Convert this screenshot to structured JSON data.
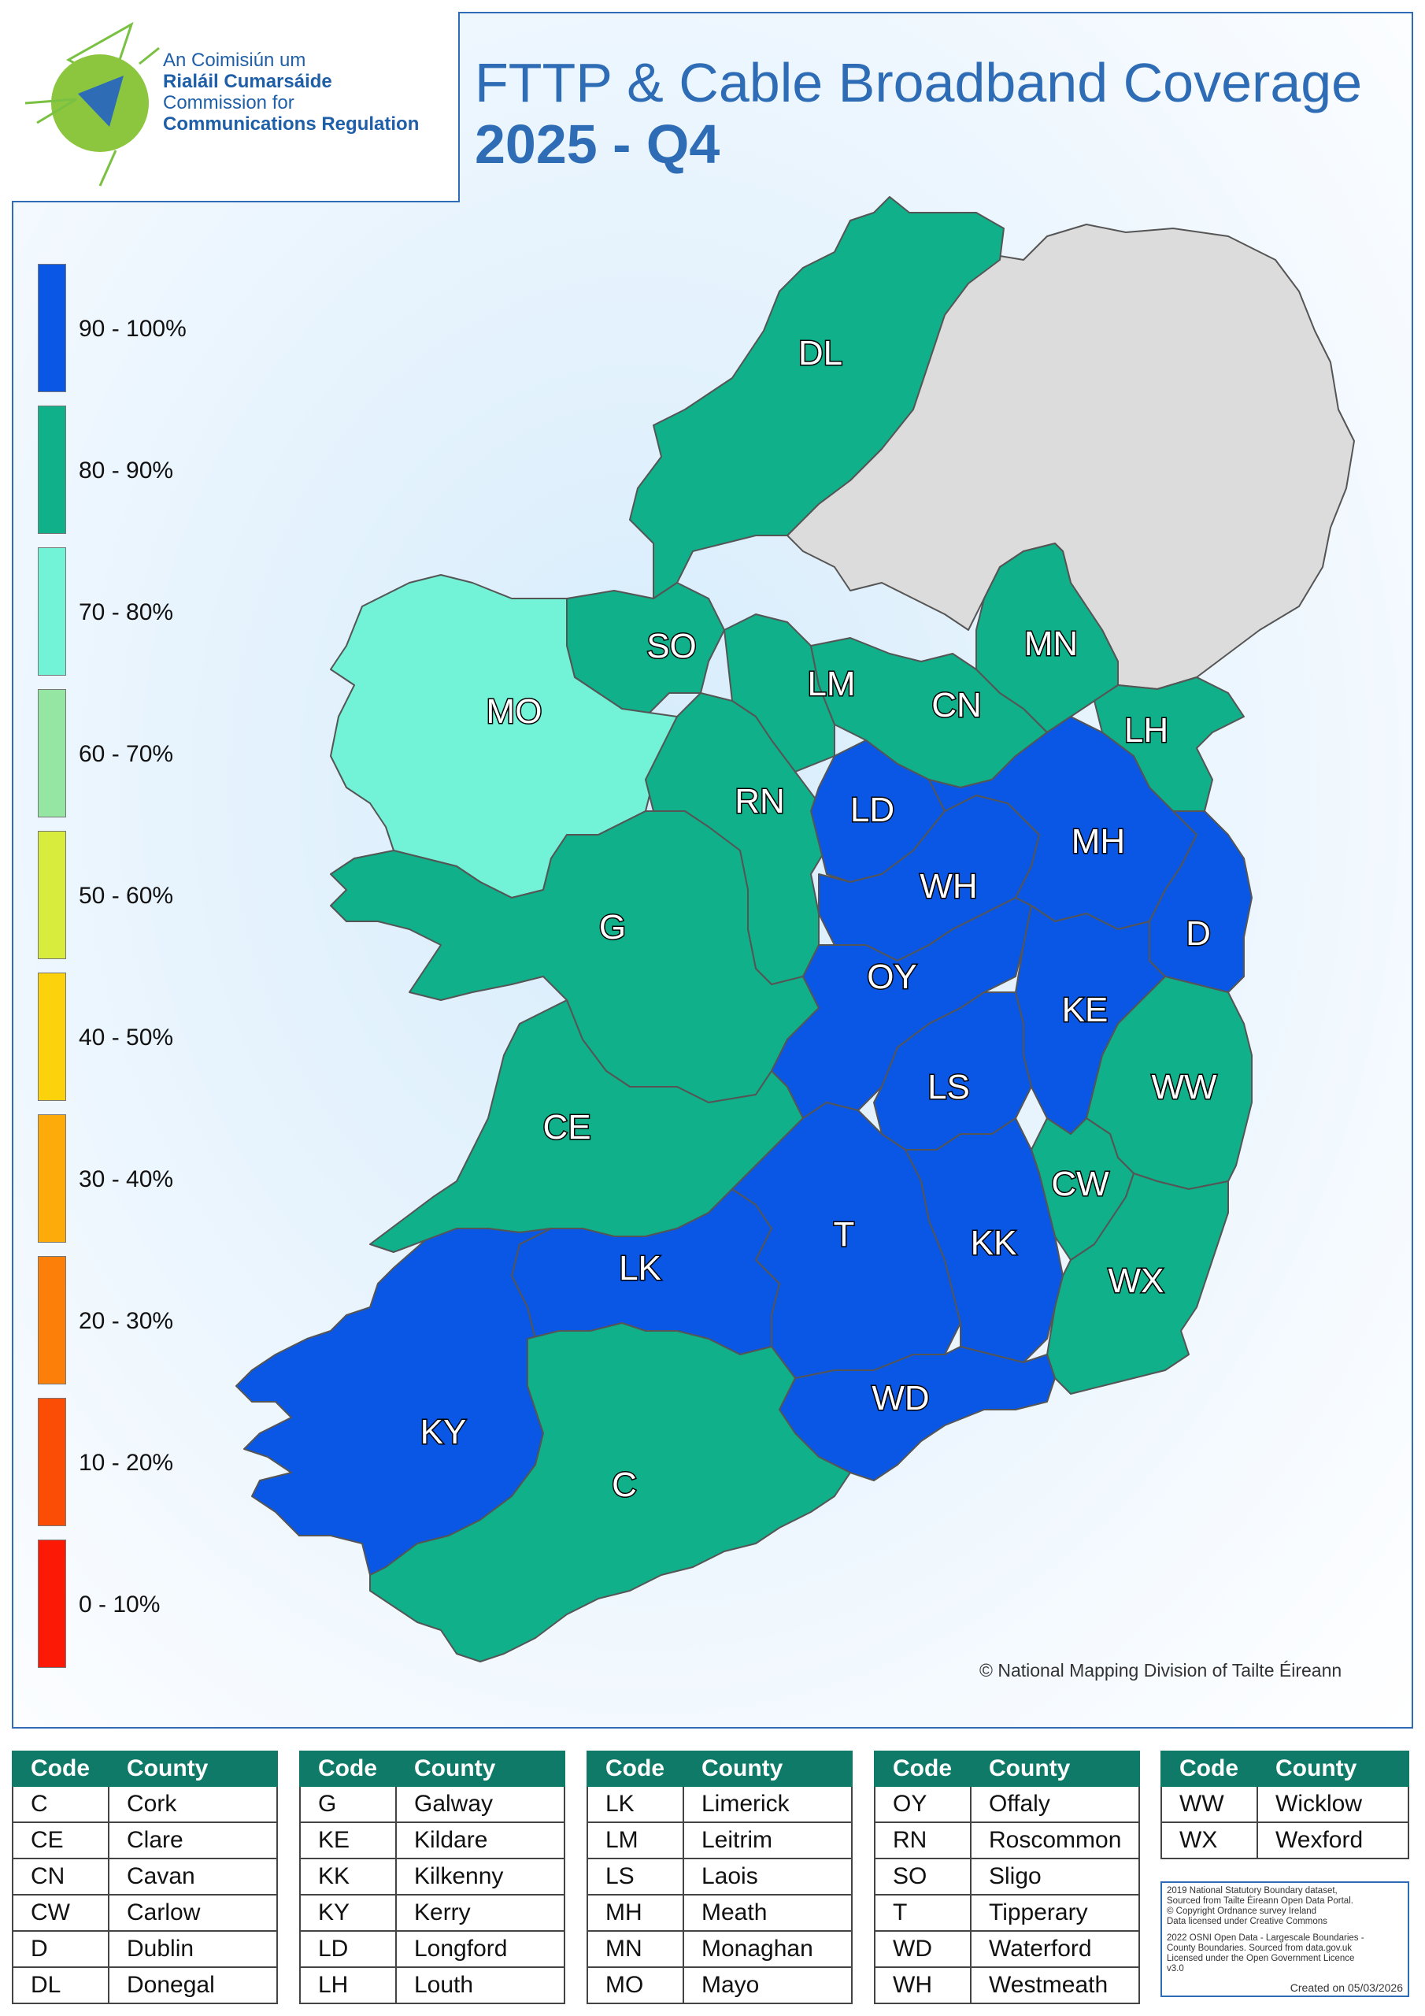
{
  "logo": {
    "line1": "An Coimisiún um",
    "line2": "Rialáil Cumarsáide",
    "line3": "Commission for",
    "line4": "Communications Regulation"
  },
  "title": {
    "line1": "FTTP & Cable Broadband Coverage",
    "line2": "2025 - Q4"
  },
  "legend": [
    {
      "label": "90 - 100%",
      "color": "#0a57e6"
    },
    {
      "label": "80 - 90%",
      "color": "#0fb08a"
    },
    {
      "label": "70 - 80%",
      "color": "#72f2d6"
    },
    {
      "label": "60 - 70%",
      "color": "#94e6a2"
    },
    {
      "label": "50 - 60%",
      "color": "#d8ec3e"
    },
    {
      "label": "40 - 50%",
      "color": "#fbd20c"
    },
    {
      "label": "30 - 40%",
      "color": "#fcab0a"
    },
    {
      "label": "20 - 30%",
      "color": "#fb7f08"
    },
    {
      "label": "10 - 20%",
      "color": "#fc4d07"
    },
    {
      "label": "0 - 10%",
      "color": "#fc1a06"
    }
  ],
  "map": {
    "counties": [
      {
        "code": "DL",
        "band": "80 - 90%"
      },
      {
        "code": "SO",
        "band": "80 - 90%"
      },
      {
        "code": "MO",
        "band": "70 - 80%"
      },
      {
        "code": "LM",
        "band": "80 - 90%"
      },
      {
        "code": "CN",
        "band": "80 - 90%"
      },
      {
        "code": "MN",
        "band": "80 - 90%"
      },
      {
        "code": "LH",
        "band": "80 - 90%"
      },
      {
        "code": "RN",
        "band": "80 - 90%"
      },
      {
        "code": "LD",
        "band": "90 - 100%"
      },
      {
        "code": "MH",
        "band": "90 - 100%"
      },
      {
        "code": "WH",
        "band": "90 - 100%"
      },
      {
        "code": "G",
        "band": "80 - 90%"
      },
      {
        "code": "D",
        "band": "90 - 100%"
      },
      {
        "code": "OY",
        "band": "90 - 100%"
      },
      {
        "code": "KE",
        "band": "90 - 100%"
      },
      {
        "code": "LS",
        "band": "90 - 100%"
      },
      {
        "code": "WW",
        "band": "80 - 90%"
      },
      {
        "code": "CE",
        "band": "80 - 90%"
      },
      {
        "code": "CW",
        "band": "80 - 90%"
      },
      {
        "code": "T",
        "band": "90 - 100%"
      },
      {
        "code": "KK",
        "band": "90 - 100%"
      },
      {
        "code": "LK",
        "band": "90 - 100%"
      },
      {
        "code": "WX",
        "band": "80 - 90%"
      },
      {
        "code": "WD",
        "band": "90 - 100%"
      },
      {
        "code": "KY",
        "band": "90 - 100%"
      },
      {
        "code": "C",
        "band": "80 - 90%"
      }
    ],
    "credit": "© National Mapping Division of Tailte Éireann"
  },
  "tables": [
    {
      "header": [
        "Code",
        "County"
      ],
      "rows": [
        [
          "C",
          "Cork"
        ],
        [
          "CE",
          "Clare"
        ],
        [
          "CN",
          "Cavan"
        ],
        [
          "CW",
          "Carlow"
        ],
        [
          "D",
          "Dublin"
        ],
        [
          "DL",
          "Donegal"
        ]
      ]
    },
    {
      "header": [
        "Code",
        "County"
      ],
      "rows": [
        [
          "G",
          "Galway"
        ],
        [
          "KE",
          "Kildare"
        ],
        [
          "KK",
          "Kilkenny"
        ],
        [
          "KY",
          "Kerry"
        ],
        [
          "LD",
          "Longford"
        ],
        [
          "LH",
          "Louth"
        ]
      ]
    },
    {
      "header": [
        "Code",
        "County"
      ],
      "rows": [
        [
          "LK",
          "Limerick"
        ],
        [
          "LM",
          "Leitrim"
        ],
        [
          "LS",
          "Laois"
        ],
        [
          "MH",
          "Meath"
        ],
        [
          "MN",
          "Monaghan"
        ],
        [
          "MO",
          "Mayo"
        ]
      ]
    },
    {
      "header": [
        "Code",
        "County"
      ],
      "rows": [
        [
          "OY",
          "Offaly"
        ],
        [
          "RN",
          "Roscommon"
        ],
        [
          "SO",
          "Sligo"
        ],
        [
          "T",
          "Tipperary"
        ],
        [
          "WD",
          "Waterford"
        ],
        [
          "WH",
          "Westmeath"
        ]
      ]
    },
    {
      "header": [
        "Code",
        "County"
      ],
      "rows": [
        [
          "WW",
          "Wicklow"
        ],
        [
          "WX",
          "Wexford"
        ]
      ]
    }
  ],
  "notes": {
    "line1": "2019 National Statutory Boundary dataset,",
    "line2": "Sourced from Tailte Éireann Open Data Portal.",
    "line3": "© Copyright Ordnance survey Ireland",
    "line4": "Data licensed under Creative Commons",
    "line5": "2022 OSNI Open Data - Largescale Boundaries -",
    "line6": "County Boundaries. Sourced from data.gov.uk",
    "line7": "Licensed under the Open Government Licence",
    "line8": "v3.0",
    "created": "Created on 05/03/2026"
  }
}
